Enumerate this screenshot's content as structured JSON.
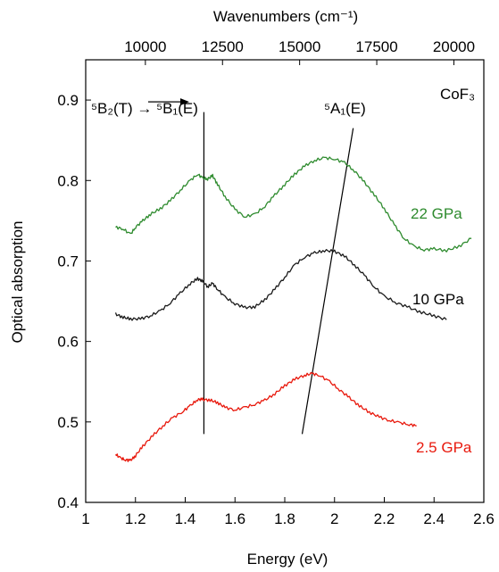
{
  "chart_data": {
    "type": "line",
    "top_axis": {
      "title": "Wavenumbers (cm⁻¹)",
      "ticks": [
        10000,
        12500,
        15000,
        17500,
        20000
      ],
      "tick_labels": [
        "10000",
        "12500",
        "15000",
        "17500",
        "20000"
      ]
    },
    "xlabel": "Energy (eV)",
    "ylabel": "Optical absorption",
    "xlim": [
      1.0,
      2.6
    ],
    "ylim": [
      0.4,
      0.95
    ],
    "x_ticks": [
      1.0,
      1.2,
      1.4,
      1.6,
      1.8,
      2.0,
      2.2,
      2.4,
      2.6
    ],
    "x_tick_labels": [
      "1",
      "1.2",
      "1.4",
      "1.6",
      "1.8",
      "2",
      "2.2",
      "2.4",
      "2.6"
    ],
    "y_ticks": [
      0.4,
      0.5,
      0.6,
      0.7,
      0.8,
      0.9
    ],
    "y_tick_labels": [
      "0.4",
      "0.5",
      "0.6",
      "0.7",
      "0.8",
      "0.9"
    ],
    "annotations": {
      "compound": "CoF₃",
      "transition_b": "⁵B₂(T) → ⁵B₁(E)",
      "transition_a": "⁵A₁(E)"
    },
    "guide_lines": [
      {
        "name": "b1-peak-line",
        "x": [
          1.475,
          1.475
        ],
        "y": [
          0.485,
          0.885
        ]
      },
      {
        "name": "a1-peak-line",
        "x": [
          1.87,
          2.075
        ],
        "y": [
          0.485,
          0.865
        ]
      }
    ],
    "series": [
      {
        "name": "22 GPa",
        "color": "#2e8b2e",
        "x": [
          1.12,
          1.15,
          1.18,
          1.2,
          1.23,
          1.26,
          1.3,
          1.34,
          1.38,
          1.42,
          1.45,
          1.47,
          1.49,
          1.51,
          1.53,
          1.56,
          1.6,
          1.64,
          1.68,
          1.72,
          1.76,
          1.8,
          1.84,
          1.88,
          1.92,
          1.96,
          2.0,
          2.04,
          2.08,
          2.12,
          2.16,
          2.2,
          2.24,
          2.28,
          2.32,
          2.36,
          2.4,
          2.45,
          2.5,
          2.55
        ],
        "y": [
          0.742,
          0.74,
          0.733,
          0.742,
          0.75,
          0.758,
          0.765,
          0.775,
          0.788,
          0.8,
          0.808,
          0.803,
          0.802,
          0.806,
          0.795,
          0.78,
          0.764,
          0.755,
          0.758,
          0.768,
          0.782,
          0.795,
          0.808,
          0.818,
          0.825,
          0.828,
          0.827,
          0.822,
          0.812,
          0.798,
          0.782,
          0.765,
          0.745,
          0.728,
          0.718,
          0.714,
          0.715,
          0.713,
          0.718,
          0.728
        ]
      },
      {
        "name": "10 GPa",
        "color": "#1a1a1a",
        "x": [
          1.12,
          1.15,
          1.18,
          1.22,
          1.26,
          1.3,
          1.34,
          1.38,
          1.42,
          1.45,
          1.47,
          1.49,
          1.51,
          1.53,
          1.56,
          1.6,
          1.64,
          1.68,
          1.72,
          1.76,
          1.8,
          1.84,
          1.88,
          1.92,
          1.96,
          2.0,
          2.04,
          2.08,
          2.12,
          2.16,
          2.2,
          2.25,
          2.3,
          2.35,
          2.4,
          2.45
        ],
        "y": [
          0.634,
          0.63,
          0.628,
          0.628,
          0.632,
          0.638,
          0.648,
          0.66,
          0.672,
          0.678,
          0.675,
          0.668,
          0.672,
          0.665,
          0.655,
          0.647,
          0.642,
          0.643,
          0.652,
          0.665,
          0.68,
          0.695,
          0.705,
          0.71,
          0.713,
          0.712,
          0.706,
          0.695,
          0.682,
          0.668,
          0.656,
          0.648,
          0.642,
          0.636,
          0.632,
          0.627
        ]
      },
      {
        "name": "2.5 GPa",
        "color": "#e8180c",
        "x": [
          1.12,
          1.14,
          1.16,
          1.18,
          1.2,
          1.23,
          1.27,
          1.31,
          1.35,
          1.39,
          1.42,
          1.45,
          1.47,
          1.5,
          1.53,
          1.56,
          1.6,
          1.64,
          1.68,
          1.72,
          1.76,
          1.8,
          1.84,
          1.88,
          1.91,
          1.94,
          1.98,
          2.02,
          2.06,
          2.1,
          2.14,
          2.18,
          2.22,
          2.26,
          2.3,
          2.33
        ],
        "y": [
          0.46,
          0.455,
          0.453,
          0.452,
          0.458,
          0.47,
          0.483,
          0.495,
          0.505,
          0.513,
          0.52,
          0.528,
          0.528,
          0.527,
          0.524,
          0.518,
          0.515,
          0.518,
          0.522,
          0.527,
          0.535,
          0.545,
          0.553,
          0.558,
          0.56,
          0.558,
          0.55,
          0.54,
          0.53,
          0.52,
          0.512,
          0.506,
          0.502,
          0.499,
          0.497,
          0.495
        ]
      }
    ]
  }
}
